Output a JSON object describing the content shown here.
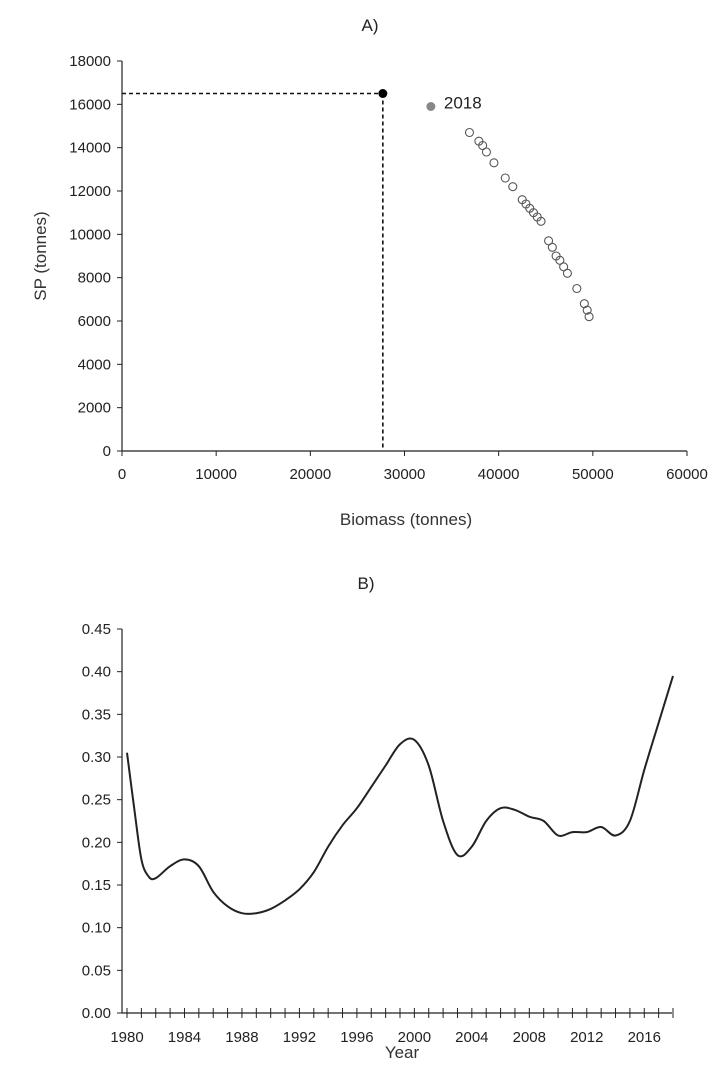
{
  "chart_data": [
    {
      "type": "scatter",
      "panel_label": "A)",
      "xlabel": "Biomass (tonnes)",
      "ylabel": "SP (tonnes)",
      "xlim": [
        0,
        60000
      ],
      "ylim": [
        0,
        18000
      ],
      "x_ticks": [
        "0",
        "10000",
        "20000",
        "30000",
        "40000",
        "50000",
        "60000"
      ],
      "y_ticks": [
        "0",
        "2000",
        "4000",
        "6000",
        "8000",
        "10000",
        "12000",
        "14000",
        "16000",
        "18000"
      ],
      "grid": false,
      "reference_point": {
        "x": 27700,
        "y": 16500,
        "style": "filled black",
        "guides": "dashed"
      },
      "highlight_point": {
        "x": 32800,
        "y": 15900,
        "label": "2018",
        "color": "#888888"
      },
      "points": [
        {
          "x": 36900,
          "y": 14700
        },
        {
          "x": 37900,
          "y": 14300
        },
        {
          "x": 38300,
          "y": 14100
        },
        {
          "x": 38700,
          "y": 13800
        },
        {
          "x": 39500,
          "y": 13300
        },
        {
          "x": 40700,
          "y": 12600
        },
        {
          "x": 41500,
          "y": 12200
        },
        {
          "x": 42500,
          "y": 11600
        },
        {
          "x": 42900,
          "y": 11400
        },
        {
          "x": 43300,
          "y": 11200
        },
        {
          "x": 43700,
          "y": 11000
        },
        {
          "x": 44100,
          "y": 10800
        },
        {
          "x": 44500,
          "y": 10600
        },
        {
          "x": 45300,
          "y": 9700
        },
        {
          "x": 45700,
          "y": 9400
        },
        {
          "x": 46100,
          "y": 9000
        },
        {
          "x": 46500,
          "y": 8800
        },
        {
          "x": 46900,
          "y": 8500
        },
        {
          "x": 47300,
          "y": 8200
        },
        {
          "x": 48300,
          "y": 7500
        },
        {
          "x": 49100,
          "y": 6800
        },
        {
          "x": 49400,
          "y": 6500
        },
        {
          "x": 49600,
          "y": 6200
        }
      ]
    },
    {
      "type": "line",
      "panel_label": "B)",
      "xlabel": "Year",
      "ylabel": "",
      "xlim": [
        1980,
        2018
      ],
      "ylim": [
        0,
        0.45
      ],
      "x_tick_labels": [
        "1980",
        "1984",
        "1988",
        "1992",
        "1996",
        "2000",
        "2004",
        "2008",
        "2012",
        "2016"
      ],
      "y_ticks": [
        "0.00",
        "0.05",
        "0.10",
        "0.15",
        "0.20",
        "0.25",
        "0.30",
        "0.35",
        "0.40",
        "0.45"
      ],
      "grid": false,
      "series": [
        {
          "x": [
            1980,
            1980.5,
            1981,
            1981.5,
            1982,
            1983,
            1984,
            1985,
            1986,
            1987,
            1988,
            1989,
            1990,
            1991,
            1992,
            1993,
            1994,
            1995,
            1996,
            1997,
            1998,
            1999,
            2000,
            2001,
            2002,
            2003,
            2004,
            2005,
            2006,
            2007,
            2008,
            2009,
            2010,
            2011,
            2012,
            2013,
            2014,
            2015,
            2016,
            2017,
            2018
          ],
          "values": [
            0.305,
            0.24,
            0.18,
            0.16,
            0.158,
            0.172,
            0.18,
            0.172,
            0.142,
            0.125,
            0.117,
            0.117,
            0.122,
            0.132,
            0.145,
            0.165,
            0.195,
            0.22,
            0.24,
            0.265,
            0.29,
            0.315,
            0.32,
            0.29,
            0.225,
            0.185,
            0.195,
            0.225,
            0.24,
            0.238,
            0.23,
            0.225,
            0.208,
            0.212,
            0.212,
            0.218,
            0.208,
            0.225,
            0.285,
            0.34,
            0.395
          ]
        }
      ]
    }
  ]
}
